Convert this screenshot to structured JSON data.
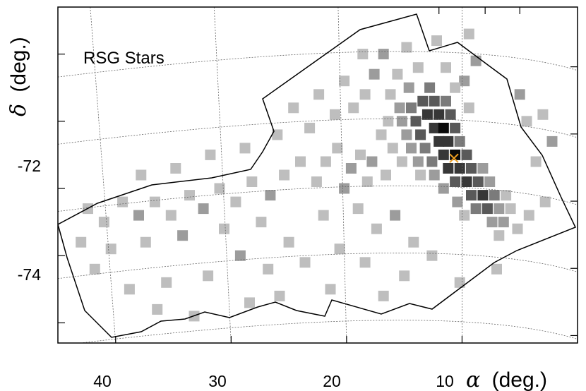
{
  "chart_data": {
    "type": "heatmap",
    "title": "",
    "annotation": "RSG Stars",
    "xlabel_symbol": "α",
    "xlabel_unit": "(deg.)",
    "ylabel_symbol": "δ",
    "ylabel_unit": "(deg.)",
    "x_ticks": [
      "40",
      "30",
      "20",
      "10"
    ],
    "y_ticks": [
      "-72",
      "-74"
    ],
    "x_range": [
      45,
      0
    ],
    "y_range": [
      -75.3,
      -70.3
    ],
    "grid": "dotted RA/Dec graticule",
    "marker": {
      "label": "center",
      "x": 10.7,
      "y": -72.55,
      "color": "#f0a020"
    },
    "bin_levels": [
      0.2,
      0.35,
      0.5,
      0.65,
      0.8,
      1.0
    ],
    "bins": [
      [
        9.4,
        -70.7,
        0.2
      ],
      [
        12.2,
        -70.8,
        0.2
      ],
      [
        14.8,
        -70.9,
        0.2
      ],
      [
        16.8,
        -71.0,
        0.35
      ],
      [
        18.6,
        -71.0,
        0.2
      ],
      [
        8.8,
        -71.1,
        0.35
      ],
      [
        11.4,
        -71.2,
        0.2
      ],
      [
        13.8,
        -71.2,
        0.2
      ],
      [
        15.6,
        -71.3,
        0.2
      ],
      [
        17.6,
        -71.3,
        0.35
      ],
      [
        20.2,
        -71.4,
        0.2
      ],
      [
        9.8,
        -71.4,
        0.35
      ],
      [
        12.8,
        -71.5,
        0.5
      ],
      [
        14.6,
        -71.5,
        0.35
      ],
      [
        16.2,
        -71.6,
        0.2
      ],
      [
        18.4,
        -71.6,
        0.2
      ],
      [
        10.6,
        -71.5,
        0.2
      ],
      [
        13.4,
        -71.7,
        0.65
      ],
      [
        12.4,
        -71.7,
        0.65
      ],
      [
        11.4,
        -71.7,
        0.5
      ],
      [
        14.4,
        -71.8,
        0.5
      ],
      [
        15.4,
        -71.8,
        0.35
      ],
      [
        9.4,
        -71.8,
        0.2
      ],
      [
        13.0,
        -71.9,
        0.8
      ],
      [
        12.0,
        -71.9,
        0.8
      ],
      [
        11.0,
        -71.9,
        0.65
      ],
      [
        14.0,
        -72.0,
        0.65
      ],
      [
        15.2,
        -72.0,
        0.35
      ],
      [
        16.4,
        -72.0,
        0.2
      ],
      [
        12.4,
        -72.1,
        0.8
      ],
      [
        11.6,
        -72.1,
        1.0
      ],
      [
        10.6,
        -72.1,
        0.65
      ],
      [
        13.6,
        -72.2,
        0.65
      ],
      [
        14.8,
        -72.2,
        0.35
      ],
      [
        17.0,
        -72.2,
        0.2
      ],
      [
        12.0,
        -72.3,
        0.8
      ],
      [
        11.2,
        -72.3,
        0.8
      ],
      [
        10.2,
        -72.3,
        0.5
      ],
      [
        13.2,
        -72.4,
        0.5
      ],
      [
        14.4,
        -72.4,
        0.35
      ],
      [
        16.0,
        -72.4,
        0.2
      ],
      [
        11.6,
        -72.5,
        0.8
      ],
      [
        10.6,
        -72.5,
        1.0
      ],
      [
        9.6,
        -72.5,
        0.65
      ],
      [
        12.6,
        -72.6,
        0.5
      ],
      [
        13.8,
        -72.6,
        0.35
      ],
      [
        15.2,
        -72.6,
        0.2
      ],
      [
        11.2,
        -72.7,
        0.8
      ],
      [
        10.2,
        -72.7,
        0.8
      ],
      [
        9.2,
        -72.7,
        0.65
      ],
      [
        8.2,
        -72.7,
        0.35
      ],
      [
        12.4,
        -72.8,
        0.35
      ],
      [
        13.6,
        -72.8,
        0.2
      ],
      [
        10.6,
        -72.9,
        0.65
      ],
      [
        9.6,
        -72.9,
        0.8
      ],
      [
        8.6,
        -72.9,
        0.65
      ],
      [
        7.6,
        -72.9,
        0.35
      ],
      [
        11.6,
        -73.0,
        0.35
      ],
      [
        9.2,
        -73.1,
        0.65
      ],
      [
        8.2,
        -73.1,
        0.8
      ],
      [
        7.2,
        -73.1,
        0.5
      ],
      [
        6.2,
        -73.1,
        0.2
      ],
      [
        10.4,
        -73.2,
        0.35
      ],
      [
        8.8,
        -73.3,
        0.5
      ],
      [
        7.8,
        -73.3,
        0.65
      ],
      [
        6.8,
        -73.3,
        0.35
      ],
      [
        5.8,
        -73.3,
        0.2
      ],
      [
        9.8,
        -73.4,
        0.2
      ],
      [
        7.4,
        -73.5,
        0.35
      ],
      [
        6.4,
        -73.5,
        0.35
      ],
      [
        5.2,
        -73.6,
        0.2
      ],
      [
        4.2,
        -73.4,
        0.2
      ],
      [
        6.8,
        -73.7,
        0.2
      ],
      [
        2.8,
        -73.2,
        0.2
      ],
      [
        3.6,
        -72.6,
        0.2
      ],
      [
        4.4,
        -72.0,
        0.2
      ],
      [
        5.0,
        -71.6,
        0.35
      ],
      [
        2.2,
        -72.3,
        0.35
      ],
      [
        3.0,
        -71.9,
        0.2
      ],
      [
        17.8,
        -72.6,
        0.35
      ],
      [
        18.8,
        -72.5,
        0.2
      ],
      [
        19.6,
        -72.7,
        0.35
      ],
      [
        20.8,
        -72.4,
        0.2
      ],
      [
        21.8,
        -72.6,
        0.2
      ],
      [
        16.6,
        -72.8,
        0.2
      ],
      [
        18.2,
        -72.9,
        0.2
      ],
      [
        20.2,
        -73.0,
        0.35
      ],
      [
        22.6,
        -72.9,
        0.2
      ],
      [
        24.0,
        -72.6,
        0.2
      ],
      [
        25.4,
        -72.8,
        0.2
      ],
      [
        26.6,
        -73.1,
        0.35
      ],
      [
        28.2,
        -72.9,
        0.2
      ],
      [
        29.6,
        -73.2,
        0.2
      ],
      [
        31.0,
        -73.0,
        0.2
      ],
      [
        32.4,
        -73.3,
        0.35
      ],
      [
        33.6,
        -73.1,
        0.2
      ],
      [
        35.2,
        -73.4,
        0.2
      ],
      [
        36.6,
        -73.2,
        0.2
      ],
      [
        38.0,
        -73.4,
        0.35
      ],
      [
        39.4,
        -73.2,
        0.2
      ],
      [
        41.0,
        -73.5,
        0.2
      ],
      [
        42.4,
        -73.3,
        0.2
      ],
      [
        27.4,
        -73.5,
        0.2
      ],
      [
        30.6,
        -73.6,
        0.2
      ],
      [
        34.2,
        -73.7,
        0.35
      ],
      [
        37.4,
        -73.8,
        0.2
      ],
      [
        40.4,
        -73.9,
        0.2
      ],
      [
        43.0,
        -73.8,
        0.2
      ],
      [
        25.0,
        -73.8,
        0.2
      ],
      [
        22.0,
        -73.4,
        0.2
      ],
      [
        19.0,
        -73.3,
        0.2
      ],
      [
        17.4,
        -73.6,
        0.2
      ],
      [
        15.8,
        -73.4,
        0.35
      ],
      [
        14.2,
        -73.8,
        0.2
      ],
      [
        20.6,
        -73.9,
        0.2
      ],
      [
        23.6,
        -74.1,
        0.2
      ],
      [
        26.8,
        -74.2,
        0.2
      ],
      [
        29.2,
        -74.0,
        0.35
      ],
      [
        32.0,
        -74.3,
        0.2
      ],
      [
        35.6,
        -74.4,
        0.2
      ],
      [
        38.8,
        -74.5,
        0.2
      ],
      [
        41.8,
        -74.2,
        0.2
      ],
      [
        36.4,
        -74.8,
        0.2
      ],
      [
        33.2,
        -74.9,
        0.2
      ],
      [
        18.4,
        -74.1,
        0.2
      ],
      [
        15.0,
        -74.3,
        0.2
      ],
      [
        12.6,
        -74.0,
        0.2
      ],
      [
        10.2,
        -74.4,
        0.2
      ],
      [
        7.0,
        -74.2,
        0.2
      ],
      [
        16.8,
        -74.6,
        0.2
      ],
      [
        21.4,
        -74.5,
        0.2
      ],
      [
        25.8,
        -74.6,
        0.2
      ],
      [
        28.4,
        -74.7,
        0.2
      ],
      [
        37.8,
        -72.8,
        0.2
      ],
      [
        34.8,
        -72.7,
        0.2
      ],
      [
        31.8,
        -72.5,
        0.2
      ],
      [
        28.8,
        -72.4,
        0.2
      ],
      [
        26.0,
        -72.2,
        0.2
      ],
      [
        23.2,
        -72.1,
        0.2
      ],
      [
        21.0,
        -71.9,
        0.2
      ],
      [
        19.4,
        -71.8,
        0.2
      ],
      [
        24.6,
        -71.8,
        0.2
      ],
      [
        22.4,
        -71.6,
        0.2
      ]
    ]
  }
}
